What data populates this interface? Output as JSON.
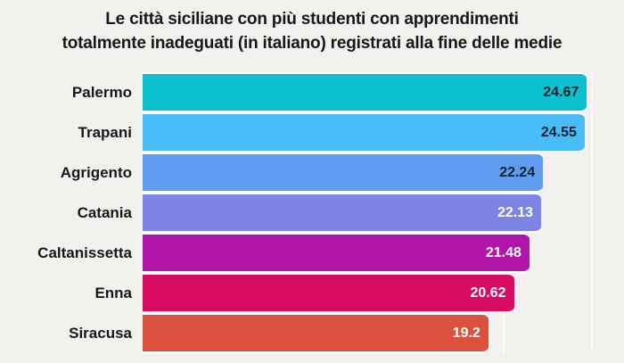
{
  "title": {
    "line1": "Le città siciliane con più studenti con apprendimenti",
    "line2": "totalmente inadeguati (in italiano) registrati alla fine delle medie"
  },
  "chart_data": {
    "type": "bar",
    "orientation": "horizontal",
    "title": "Le città siciliane con più studenti con apprendimenti totalmente inadeguati (in italiano) registrati alla fine delle medie",
    "categories": [
      "Palermo",
      "Trapani",
      "Agrigento",
      "Catania",
      "Caltanissetta",
      "Enna",
      "Siracusa"
    ],
    "values": [
      24.67,
      24.55,
      22.24,
      22.13,
      21.48,
      20.62,
      19.2
    ],
    "value_labels": [
      "24.67",
      "24.55",
      "22.24",
      "22.13",
      "21.48",
      "20.62",
      "19.2"
    ],
    "xlim": [
      0,
      25
    ],
    "gridlines_x": [
      5,
      10,
      15,
      20,
      25
    ],
    "grid": "faint vertical white lines",
    "legend_position": "none",
    "xlabel": "",
    "ylabel": "",
    "bar_colors": [
      "#0dc0d0",
      "#49bbf6",
      "#609df1",
      "#7e84e4",
      "#b215a9",
      "#d70b62",
      "#da5140"
    ],
    "value_label_colors": [
      "#14222e",
      "#14222e",
      "#14222e",
      "#ffffff",
      "#ffffff",
      "#ffffff",
      "#ffffff"
    ],
    "background_color": "#f2f1ee",
    "text_color": "#16161c"
  }
}
